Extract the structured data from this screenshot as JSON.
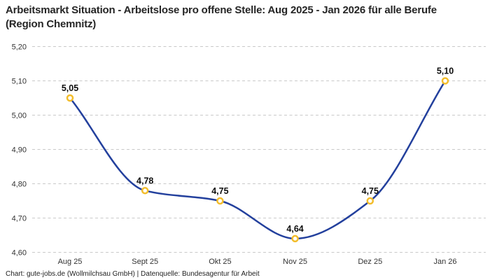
{
  "header": {
    "title": "Arbeitsmarkt Situation - Arbeitslose pro offene Stelle: Aug 2025 - Jan 2026 für alle Berufe (Region Chemnitz)"
  },
  "footer": {
    "credit": "Chart: gute-jobs.de (Wollmilchsau GmbH) | Datenquelle: Bundesagentur für Arbeit"
  },
  "chart_data": {
    "type": "line",
    "title": "Arbeitsmarkt Situation - Arbeitslose pro offene Stelle: Aug 2025 - Jan 2026 für alle Berufe (Region Chemnitz)",
    "categories": [
      "Aug 25",
      "Sept 25",
      "Okt 25",
      "Nov 25",
      "Dez 25",
      "Jan 26"
    ],
    "values": [
      5.05,
      4.78,
      4.75,
      4.64,
      4.75,
      5.1
    ],
    "value_labels": [
      "5,05",
      "4,78",
      "4,75",
      "4,64",
      "4,75",
      "5,10"
    ],
    "xlabel": "",
    "ylabel": "",
    "ylim": [
      4.6,
      5.2
    ],
    "y_ticks": [
      5.2,
      5.1,
      5.0,
      4.9,
      4.8,
      4.7,
      4.6
    ],
    "y_tick_labels": [
      "5,20",
      "5,10",
      "5,00",
      "4,90",
      "4,80",
      "4,70",
      "4,60"
    ],
    "grid": "horizontal-dashed",
    "legend_position": "none",
    "curve": "smooth-monotone",
    "colors": {
      "line": "#23409d",
      "marker_ring": "#f3bd2b",
      "marker_fill": "#ffffff",
      "grid": "#c9c9c9",
      "axis_text": "#333333",
      "data_label": "#0d0d0d"
    }
  }
}
